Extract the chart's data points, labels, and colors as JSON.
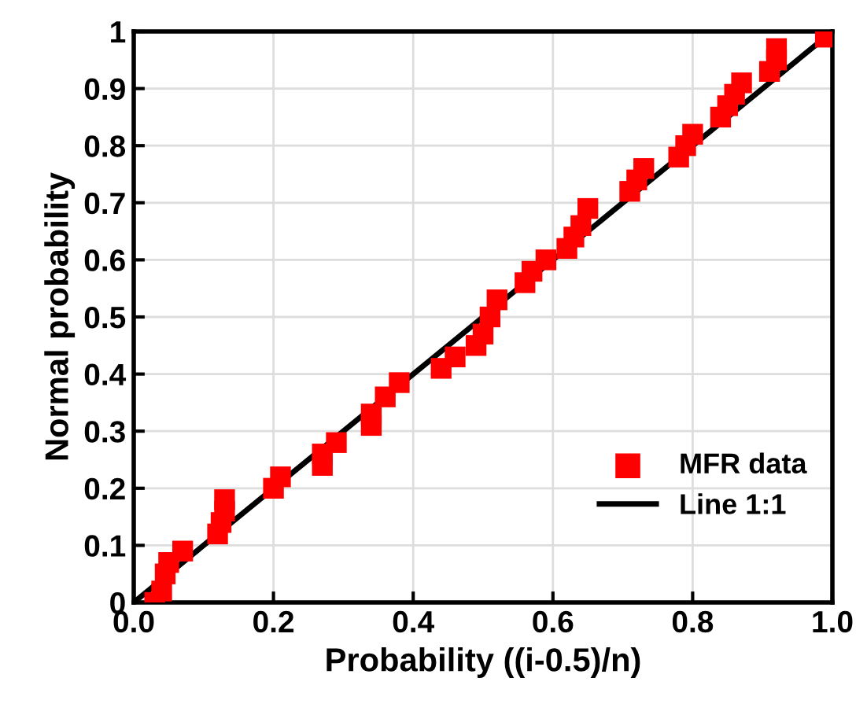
{
  "chart_data": {
    "type": "scatter",
    "xlabel": "Probability ((i-0.5)/n)",
    "ylabel": "Normal probability",
    "xlim": [
      0,
      1
    ],
    "ylim": [
      0,
      1
    ],
    "xticks": [
      {
        "value": 0,
        "label": "0.0"
      },
      {
        "value": 0.2,
        "label": "0.2"
      },
      {
        "value": 0.4,
        "label": "0.4"
      },
      {
        "value": 0.6,
        "label": "0.6"
      },
      {
        "value": 0.8,
        "label": "0.8"
      },
      {
        "value": 1,
        "label": "1.0"
      }
    ],
    "yticks": [
      0,
      0.1,
      0.2,
      0.3,
      0.4,
      0.5,
      0.6,
      0.7,
      0.8,
      0.9,
      1
    ],
    "grid": true,
    "legend": "bottom right",
    "series": [
      {
        "name": "MFR data",
        "color": "#ff0000",
        "marker": "square",
        "x": [
          0.03,
          0.04,
          0.045,
          0.05,
          0.07,
          0.12,
          0.125,
          0.13,
          0.13,
          0.2,
          0.21,
          0.27,
          0.27,
          0.29,
          0.34,
          0.34,
          0.36,
          0.38,
          0.44,
          0.46,
          0.49,
          0.5,
          0.51,
          0.52,
          0.56,
          0.57,
          0.59,
          0.62,
          0.63,
          0.64,
          0.65,
          0.71,
          0.72,
          0.73,
          0.78,
          0.79,
          0.8,
          0.84,
          0.85,
          0.86,
          0.87,
          0.91,
          0.92,
          0.92,
          0.99
        ],
        "values": [
          0.0,
          0.02,
          0.05,
          0.07,
          0.09,
          0.12,
          0.14,
          0.16,
          0.18,
          0.2,
          0.22,
          0.24,
          0.26,
          0.28,
          0.31,
          0.33,
          0.36,
          0.385,
          0.41,
          0.43,
          0.45,
          0.47,
          0.5,
          0.53,
          0.56,
          0.58,
          0.6,
          0.62,
          0.64,
          0.66,
          0.69,
          0.72,
          0.74,
          0.76,
          0.78,
          0.8,
          0.82,
          0.85,
          0.87,
          0.89,
          0.91,
          0.93,
          0.95,
          0.97,
          0.99
        ]
      },
      {
        "name": "Line 1:1",
        "type": "line",
        "color": "#000000",
        "line_style": "solid",
        "x": [
          0,
          1
        ],
        "values": [
          0,
          1
        ]
      }
    ]
  }
}
